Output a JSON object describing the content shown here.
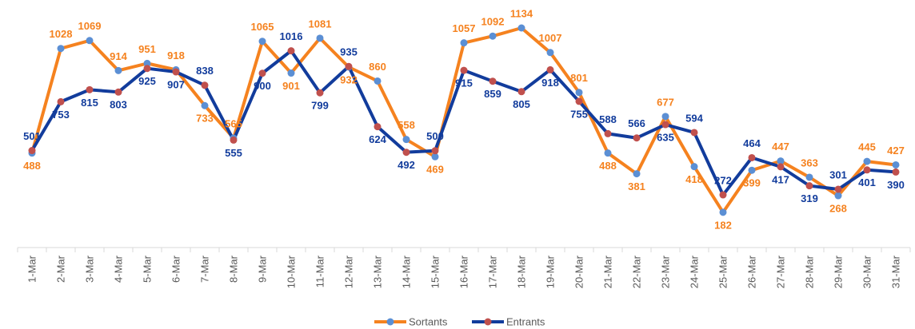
{
  "chart_data": {
    "type": "line",
    "categories": [
      "1-Mar",
      "2-Mar",
      "3-Mar",
      "4-Mar",
      "5-Mar",
      "6-Mar",
      "7-Mar",
      "8-Mar",
      "9-Mar",
      "10-Mar",
      "11-Mar",
      "12-Mar",
      "13-Mar",
      "14-Mar",
      "15-Mar",
      "16-Mar",
      "17-Mar",
      "18-Mar",
      "19-Mar",
      "20-Mar",
      "21-Mar",
      "22-Mar",
      "23-Mar",
      "24-Mar",
      "25-Mar",
      "26-Mar",
      "27-Mar",
      "28-Mar",
      "29-Mar",
      "30-Mar",
      "31-Mar"
    ],
    "series": [
      {
        "name": "Sortants",
        "color": "#f5821f",
        "marker_color": "#5b8fd4",
        "values": [
          488,
          1028,
          1069,
          914,
          951,
          918,
          733,
          565,
          1065,
          901,
          1081,
          932,
          860,
          558,
          469,
          1057,
          1092,
          1134,
          1007,
          801,
          488,
          381,
          677,
          418,
          182,
          399,
          447,
          363,
          268,
          445,
          427
        ]
      },
      {
        "name": "Entrants",
        "color": "#123c9c",
        "marker_color": "#c0504d",
        "values": [
          501,
          753,
          815,
          803,
          925,
          907,
          838,
          555,
          900,
          1016,
          799,
          935,
          624,
          492,
          500,
          915,
          859,
          805,
          918,
          755,
          588,
          566,
          635,
          594,
          272,
          464,
          417,
          319,
          301,
          401,
          390
        ]
      }
    ],
    "ylim": [
      0,
      1200
    ],
    "legend": "bottom"
  }
}
